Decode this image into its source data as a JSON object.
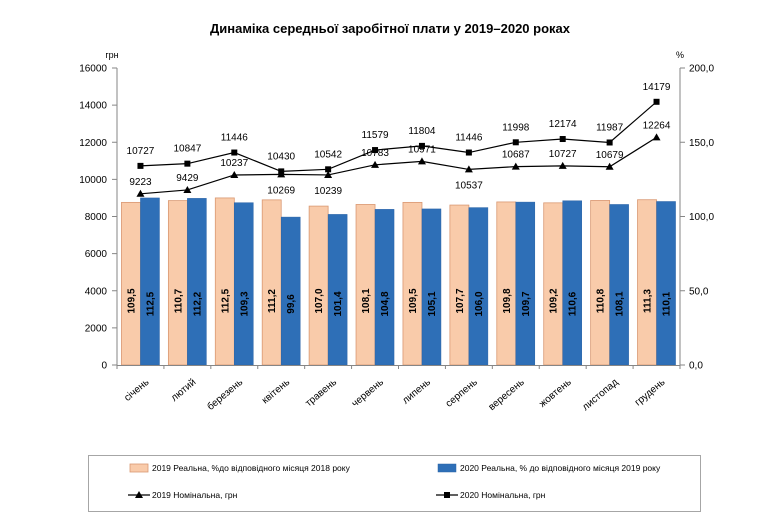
{
  "chart_data": {
    "type": "bar",
    "title": "Динаміка середньої заробітної плати у 2019–2020 роках",
    "categories": [
      "січень",
      "лютий",
      "березень",
      "квітень",
      "травень",
      "червень",
      "липень",
      "серпень",
      "вересень",
      "жовтень",
      "листопад",
      "грудень"
    ],
    "y_left": {
      "label": "грн",
      "range": [
        0,
        16000
      ],
      "ticks": [
        0,
        2000,
        4000,
        6000,
        8000,
        10000,
        12000,
        14000,
        16000
      ]
    },
    "y_right": {
      "label": "%",
      "range": [
        0,
        200
      ],
      "ticks": [
        0,
        50,
        100,
        150,
        200
      ]
    },
    "grid": false,
    "legend": "bottom",
    "series": [
      {
        "name": "2019 Реальна, %до відповідного місяця 2018 року",
        "type": "bar",
        "axis": "right",
        "color": "#F9CBAA",
        "values": [
          109.5,
          110.7,
          112.5,
          111.2,
          107.0,
          108.1,
          109.5,
          107.7,
          109.8,
          109.2,
          110.8,
          111.3
        ]
      },
      {
        "name": "2020 Реальна, % до відповідного місяця 2019 року",
        "type": "bar",
        "axis": "right",
        "color": "#2E6FB7",
        "values": [
          112.5,
          112.2,
          109.3,
          99.6,
          101.4,
          104.8,
          105.1,
          106.0,
          109.7,
          110.6,
          108.1,
          110.1
        ]
      },
      {
        "name": "2019 Номінальна, грн",
        "type": "line",
        "axis": "left",
        "marker": "triangle",
        "color": "#000000",
        "values": [
          9223,
          9429,
          10237,
          10269,
          10239,
          10783,
          10971,
          10537,
          10687,
          10727,
          10679,
          12264
        ]
      },
      {
        "name": "2020 Номінальна, грн",
        "type": "line",
        "axis": "left",
        "marker": "square",
        "color": "#000000",
        "values": [
          10727,
          10847,
          11446,
          10430,
          10542,
          11579,
          11804,
          11446,
          11998,
          12174,
          11987,
          14179
        ]
      }
    ]
  }
}
